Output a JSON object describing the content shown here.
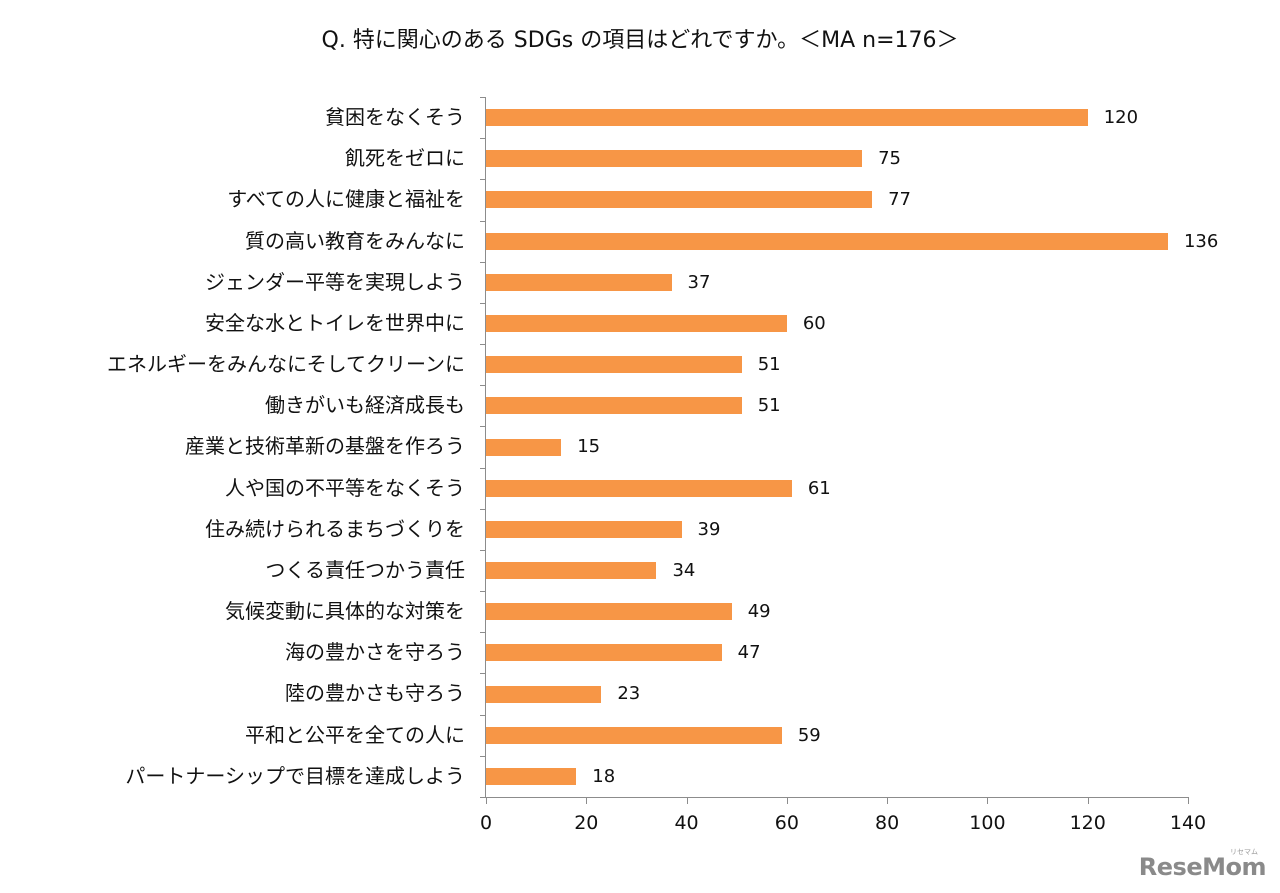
{
  "chart": {
    "title": "Q. 特に関心のある SDGs の項目はどれですか。＜MA n=176＞",
    "bar_color": "#F79646",
    "axis_color": "#8C8C8C"
  },
  "watermark": {
    "text": "ReseMom",
    "sub": "リセマム"
  },
  "chart_data": {
    "type": "bar",
    "orientation": "horizontal",
    "title": "Q. 特に関心のある SDGs の項目はどれですか。＜MA n=176＞",
    "xlabel": "",
    "ylabel": "",
    "xlim": [
      0,
      140
    ],
    "xticks": [
      0,
      20,
      40,
      60,
      80,
      100,
      120,
      140
    ],
    "grid": false,
    "legend": null,
    "data_labels": true,
    "categories": [
      "貧困をなくそう",
      "飢死をゼロに",
      "すべての人に健康と福祉を",
      "質の高い教育をみんなに",
      "ジェンダー平等を実現しよう",
      "安全な水とトイレを世界中に",
      "エネルギーをみんなにそしてクリーンに",
      "働きがいも経済成長も",
      "産業と技術革新の基盤を作ろう",
      "人や国の不平等をなくそう",
      "住み続けられるまちづくりを",
      "つくる責任つかう責任",
      "気候変動に具体的な対策を",
      "海の豊かさを守ろう",
      "陸の豊かさも守ろう",
      "平和と公平を全ての人に",
      "パートナーシップで目標を達成しよう"
    ],
    "values": [
      120,
      75,
      77,
      136,
      37,
      60,
      51,
      51,
      15,
      61,
      39,
      34,
      49,
      47,
      23,
      59,
      18
    ]
  }
}
